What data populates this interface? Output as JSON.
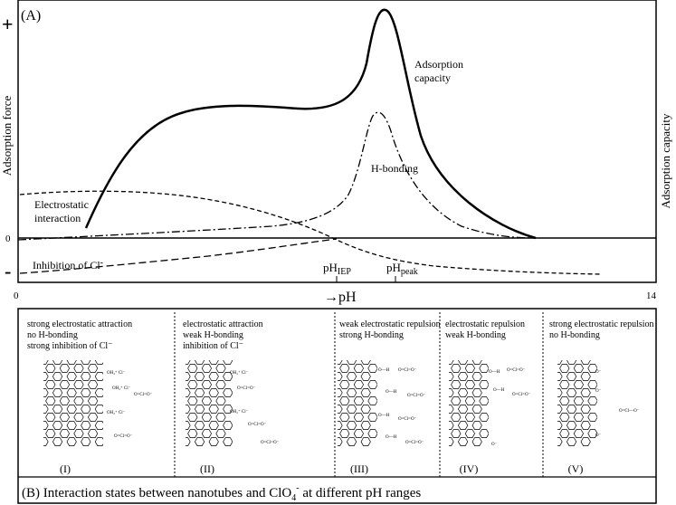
{
  "panelA": {
    "label": "(A)",
    "plus": "+",
    "minus": "-",
    "zero": "0",
    "yLeft": "Adsorption force",
    "yRight": "Adsorption capacity",
    "axisStart": "0",
    "axisEnd": "14",
    "axisLabel": "→pH",
    "curves": {
      "adsorption": [
        "Adsorption",
        "capacity"
      ],
      "hbond": "H-bonding",
      "electro": [
        "Electrostatic",
        "interaction"
      ],
      "inhibition": "Inhibition of Cl"
    },
    "marks": {
      "iep": {
        "base": "pH",
        "sub": "IEP"
      },
      "peak": {
        "base": "pH",
        "sub": "peak"
      }
    }
  },
  "panelB": {
    "caption": "(B) Interaction states between nanotubes and ClO",
    "captionTail": " at different pH ranges",
    "states": [
      {
        "roman": "(I)",
        "lines": [
          "strong electrostatic attraction",
          "no H-bonding",
          "strong inhibition of Cl⁻"
        ]
      },
      {
        "roman": "(II)",
        "lines": [
          "electrostatic attraction",
          "weak H-bonding",
          "inhibition of Cl⁻"
        ]
      },
      {
        "roman": "(III)",
        "lines": [
          "weak electrostatic repulsion",
          "strong H-bonding"
        ]
      },
      {
        "roman": "(IV)",
        "lines": [
          "electrostatic repulsion",
          "weak H-bonding"
        ]
      },
      {
        "roman": "(V)",
        "lines": [
          "strong electrostatic repulsion",
          "no H-bonding"
        ]
      }
    ],
    "chem": {
      "oh2": "OH₂⁺ Cl⁻",
      "perchlorate": "O=Cl=O⁻",
      "oh": "O—H",
      "ominus": "O⁻",
      "clo4": "O=Cl—O⁻"
    }
  }
}
